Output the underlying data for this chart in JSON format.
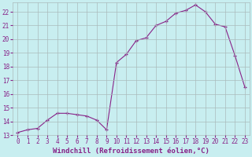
{
  "x": [
    0,
    1,
    2,
    3,
    4,
    5,
    6,
    7,
    8,
    9,
    10,
    11,
    12,
    13,
    14,
    15,
    16,
    17,
    18,
    19,
    20,
    21,
    22,
    23
  ],
  "y": [
    13.2,
    13.4,
    13.5,
    14.1,
    14.6,
    14.6,
    14.5,
    14.4,
    14.1,
    13.4,
    18.3,
    18.9,
    19.9,
    20.1,
    21.0,
    21.3,
    21.9,
    22.1,
    22.5,
    22.0,
    21.1,
    20.9,
    18.8,
    16.5
  ],
  "xlim": [
    -0.5,
    23.5
  ],
  "ylim": [
    13,
    22.7
  ],
  "yticks": [
    13,
    14,
    15,
    16,
    17,
    18,
    19,
    20,
    21,
    22
  ],
  "xticks": [
    0,
    1,
    2,
    3,
    4,
    5,
    6,
    7,
    8,
    9,
    10,
    11,
    12,
    13,
    14,
    15,
    16,
    17,
    18,
    19,
    20,
    21,
    22,
    23
  ],
  "xlabel": "Windchill (Refroidissement éolien,°C)",
  "line_color": "#882288",
  "marker": "+",
  "bg_color": "#c8eef0",
  "grid_color": "#aabbbb",
  "tick_color": "#882288",
  "label_color": "#882288",
  "tick_fontsize": 5.5,
  "xlabel_fontsize": 6.5
}
